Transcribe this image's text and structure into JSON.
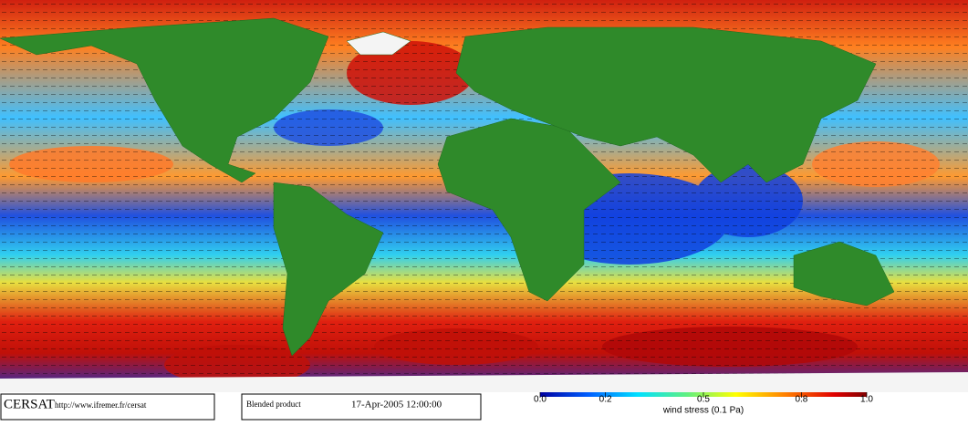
{
  "header": {
    "logo": "CERSAT",
    "url": "http://www.ifremer.fr/cersat",
    "product": "Blended product",
    "date": "17-Apr-2005 12:00:00"
  },
  "colorbar": {
    "label": "wind stress (0.1 Pa)",
    "range": [
      0,
      1
    ],
    "ticks": [
      {
        "value": 0,
        "label": "0.0"
      },
      {
        "value": 0.2,
        "label": "0.2"
      },
      {
        "value": 0.5,
        "label": "0.5"
      },
      {
        "value": 0.8,
        "label": "0.8"
      },
      {
        "value": 1,
        "label": "1.0"
      }
    ]
  }
}
